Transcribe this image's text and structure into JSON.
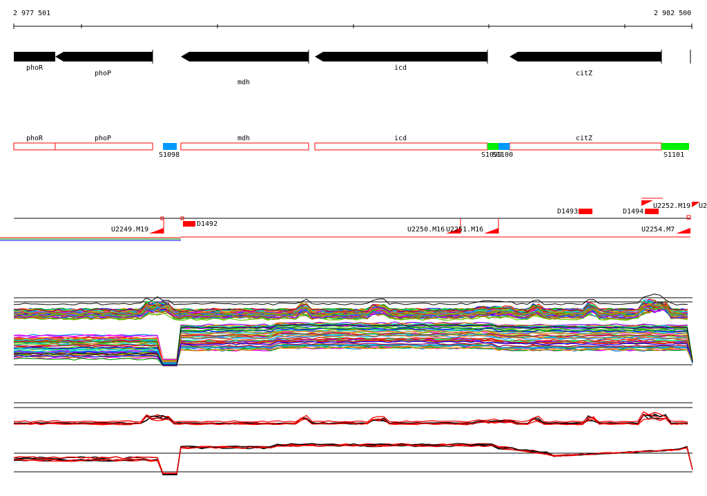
{
  "coordinates": {
    "start": "2 977 501",
    "end": "2 982 500"
  },
  "genes": [
    "phoR",
    "phoP",
    "mdh",
    "icd",
    "citZ"
  ],
  "segment_labels": [
    "S1098",
    "S1099",
    "S1100",
    "S1101"
  ],
  "upstream_labels": [
    "U2249.M19",
    "U2250.M16",
    "U2251.M16",
    "U2252.M19",
    "U2254.M7",
    "U2"
  ],
  "downstream_labels": [
    "D1492",
    "D1493",
    "D1494"
  ],
  "colors": {
    "gene_arrow": "#000000",
    "feature_outline": "#ff0000",
    "segment_blue": "#0099ff",
    "segment_green": "#00ee00",
    "signal_red": "#ff0000"
  }
}
